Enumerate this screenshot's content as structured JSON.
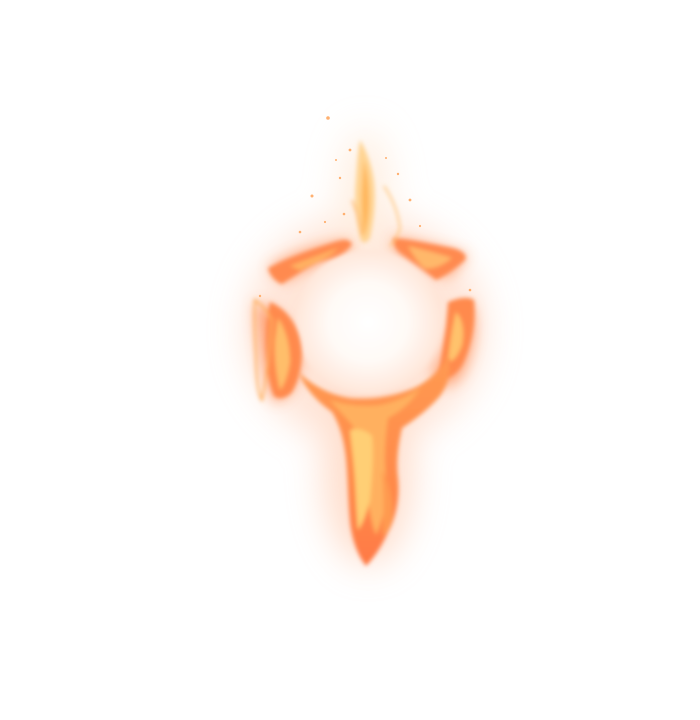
{
  "scene": {
    "subject": "fire-glyph",
    "background_color": "#ffffff",
    "colors": {
      "flame_outer": "#ff7a45",
      "flame_mid": "#ff9a4e",
      "flame_core": "#ffc768",
      "flame_highlight": "#ffe39a",
      "glow": "#ffd6c2"
    }
  }
}
